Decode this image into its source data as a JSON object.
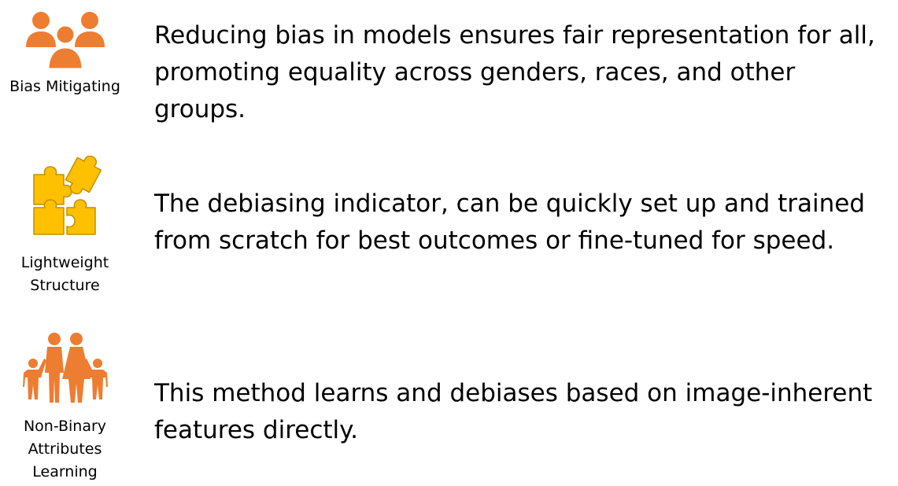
{
  "colors": {
    "orange": "#ED7D31",
    "gold": "#FFC000",
    "gold_stroke": "#BF9000",
    "text": "#000000"
  },
  "items": [
    {
      "icon": "group-of-people-icon",
      "caption": "Bias Mitigating",
      "description": "Reducing bias in models ensures fair representation for all,\npromoting equality across genders, races, and other groups."
    },
    {
      "icon": "puzzle-pieces-icon",
      "caption": "Lightweight\nStructure",
      "description": "The debiasing indicator, can be quickly set up and trained\nfrom scratch for best outcomes or fine-tuned for speed."
    },
    {
      "icon": "family-icon",
      "caption": "Non-Binary\nAttributes\nLearning",
      "description": "This method learns and debiases based on image-inherent\nfeatures directly."
    }
  ]
}
